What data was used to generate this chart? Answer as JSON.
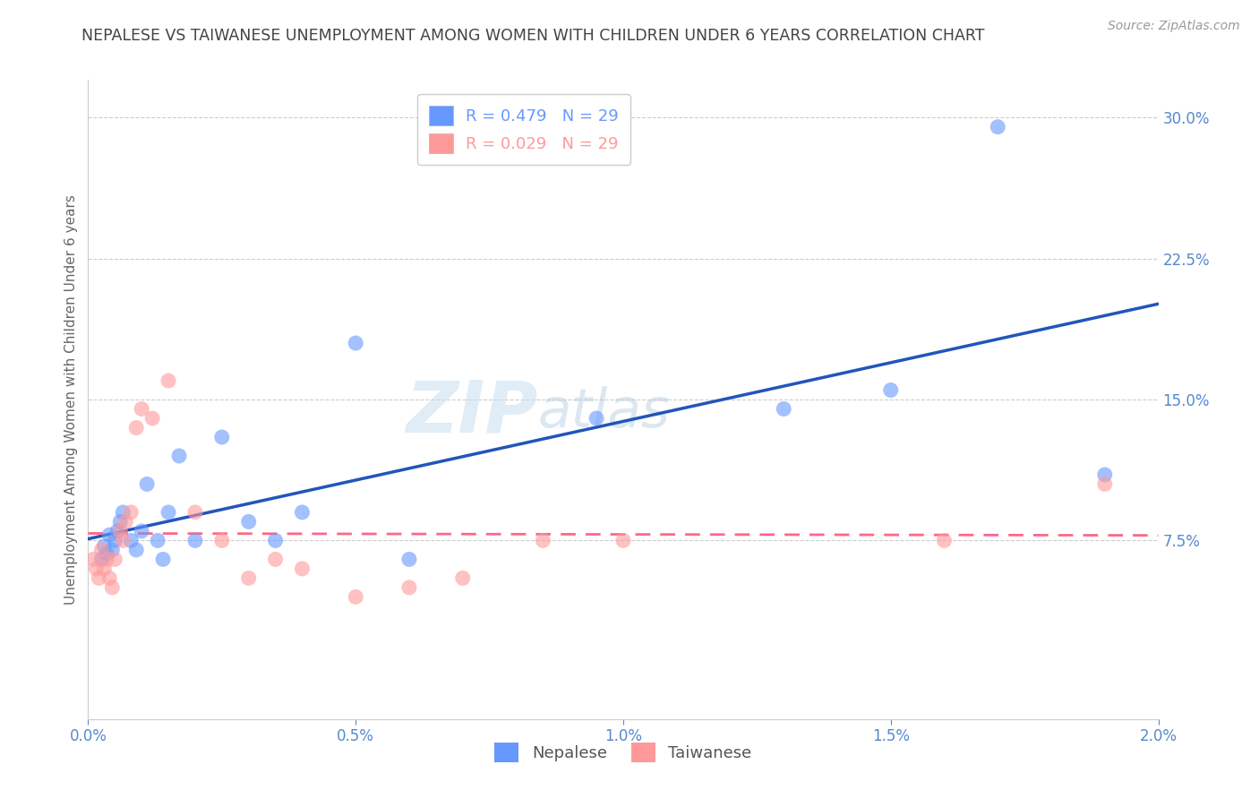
{
  "title": "NEPALESE VS TAIWANESE UNEMPLOYMENT AMONG WOMEN WITH CHILDREN UNDER 6 YEARS CORRELATION CHART",
  "source": "Source: ZipAtlas.com",
  "ylabel": "Unemployment Among Women with Children Under 6 years",
  "xlabel_ticks": [
    "0.0%",
    "",
    "0.5%",
    "",
    "1.0%",
    "",
    "1.5%",
    "",
    "2.0%"
  ],
  "xlabel_vals": [
    0.0,
    0.0025,
    0.005,
    0.0075,
    0.01,
    0.0125,
    0.015,
    0.0175,
    0.02
  ],
  "xlabel_show_ticks": [
    "0.0%",
    "0.5%",
    "1.0%",
    "1.5%",
    "2.0%"
  ],
  "xlabel_show_vals": [
    0.0,
    0.005,
    0.01,
    0.015,
    0.02
  ],
  "ylabel_ticks": [
    "7.5%",
    "15.0%",
    "22.5%",
    "30.0%"
  ],
  "ylabel_vals": [
    0.075,
    0.15,
    0.225,
    0.3
  ],
  "xmin": 0.0,
  "xmax": 0.02,
  "ymin": -0.02,
  "ymax": 0.32,
  "nepalese_x": [
    0.00025,
    0.0003,
    0.00035,
    0.0004,
    0.00045,
    0.0005,
    0.00055,
    0.0006,
    0.00065,
    0.0008,
    0.0009,
    0.001,
    0.0011,
    0.0013,
    0.0014,
    0.0015,
    0.0017,
    0.002,
    0.0025,
    0.003,
    0.0035,
    0.004,
    0.005,
    0.006,
    0.0095,
    0.013,
    0.015,
    0.017,
    0.019
  ],
  "nepalese_y": [
    0.065,
    0.072,
    0.068,
    0.078,
    0.07,
    0.075,
    0.08,
    0.085,
    0.09,
    0.075,
    0.07,
    0.08,
    0.105,
    0.075,
    0.065,
    0.09,
    0.12,
    0.075,
    0.13,
    0.085,
    0.075,
    0.09,
    0.18,
    0.065,
    0.14,
    0.145,
    0.155,
    0.295,
    0.11
  ],
  "taiwanese_x": [
    0.0001,
    0.00015,
    0.0002,
    0.00025,
    0.0003,
    0.00035,
    0.0004,
    0.00045,
    0.0005,
    0.0006,
    0.00065,
    0.0007,
    0.0008,
    0.0009,
    0.001,
    0.0012,
    0.0015,
    0.002,
    0.0025,
    0.003,
    0.0035,
    0.004,
    0.005,
    0.006,
    0.007,
    0.0085,
    0.01,
    0.016,
    0.019
  ],
  "taiwanese_y": [
    0.065,
    0.06,
    0.055,
    0.07,
    0.06,
    0.065,
    0.055,
    0.05,
    0.065,
    0.08,
    0.075,
    0.085,
    0.09,
    0.135,
    0.145,
    0.14,
    0.16,
    0.09,
    0.075,
    0.055,
    0.065,
    0.06,
    0.045,
    0.05,
    0.055,
    0.075,
    0.075,
    0.075,
    0.105
  ],
  "nepalese_color": "#6699ff",
  "taiwanese_color": "#ff9999",
  "nepalese_line_color": "#2255bb",
  "taiwanese_line_color": "#ff6688",
  "background_color": "#ffffff",
  "grid_color": "#cccccc",
  "title_color": "#444444",
  "axis_label_color": "#5588cc",
  "watermark_zip": "ZIP",
  "watermark_atlas": "atlas",
  "watermark_color": "#ddeeff"
}
